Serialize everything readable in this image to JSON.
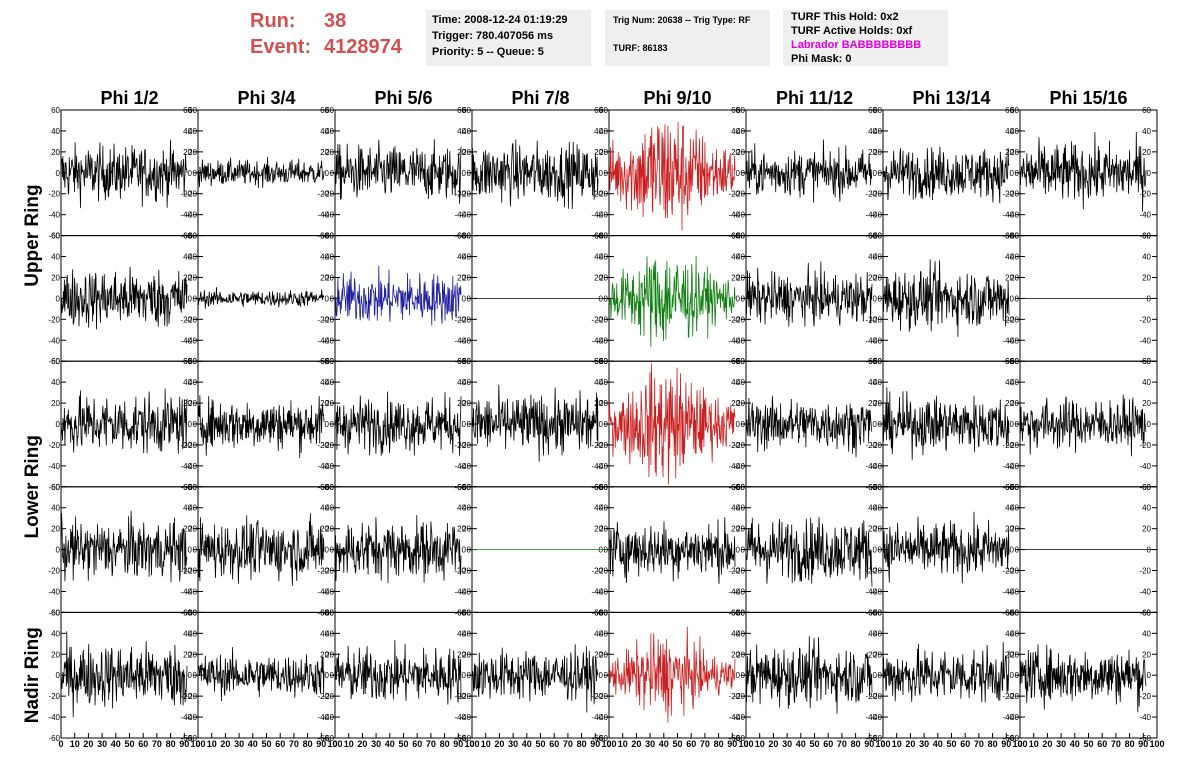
{
  "header": {
    "run_label": "Run:",
    "run_value": "38",
    "event_label": "Event:",
    "event_value": "4128974",
    "time": "Time: 2008-12-24 01:19:29",
    "trigger": "Trigger: 780.407056 ms",
    "priority": "Priority: 5 -- Queue: 5",
    "trig_num": "Trig Num: 20638 -- Trig Type: RF",
    "turf": "TURF: 86183",
    "turf_this_hold": "TURF This Hold: 0x2",
    "turf_active_holds": "TURF Active Holds: 0xf",
    "labrador": "Labrador BABBBBBBBB",
    "phi_mask": "Phi Mask: 0"
  },
  "colors": {
    "black": "#000000",
    "red": "#cc2020",
    "blue": "#2020a0",
    "green": "#108010",
    "header": "#d05050",
    "magenta": "#e000e0"
  },
  "chart_data": {
    "type": "line",
    "columns": [
      "Phi 1/2",
      "Phi 3/4",
      "Phi 5/6",
      "Phi 7/8",
      "Phi 9/10",
      "Phi 11/12",
      "Phi 13/14",
      "Phi 15/16"
    ],
    "row_groups": [
      {
        "label": "Upper Ring",
        "rows": [
          0,
          1
        ]
      },
      {
        "label": "Lower Ring",
        "rows": [
          2,
          3
        ]
      },
      {
        "label": "Nadir Ring",
        "rows": [
          4
        ]
      }
    ],
    "ylim": [
      -60,
      60
    ],
    "yticks": [
      -60,
      -40,
      -20,
      0,
      20,
      40,
      60
    ],
    "xlim": [
      0,
      100
    ],
    "xticks": [
      0,
      10,
      20,
      30,
      40,
      50,
      60,
      70,
      80,
      90,
      100
    ],
    "grid": false,
    "panels": [
      [
        "black:13",
        "black:6",
        "black:13",
        "black:14",
        "red:22",
        "black:11",
        "black:12",
        "black:14"
      ],
      [
        "black:14",
        "black:4",
        "blue:12",
        "flat:black",
        "green:17",
        "black:12",
        "black:14",
        "flat:black"
      ],
      [
        "black:14",
        "black:12",
        "black:13",
        "black:14",
        "red:20",
        "black:12",
        "black:13",
        "black:12"
      ],
      [
        "black:14",
        "black:14",
        "black:14",
        "flat:green",
        "black:13",
        "black:15",
        "black:13",
        "flat:black"
      ],
      [
        "black:15",
        "black:10",
        "black:13",
        "black:12",
        "red:14",
        "black:14",
        "black:13",
        "black:13"
      ]
    ]
  }
}
